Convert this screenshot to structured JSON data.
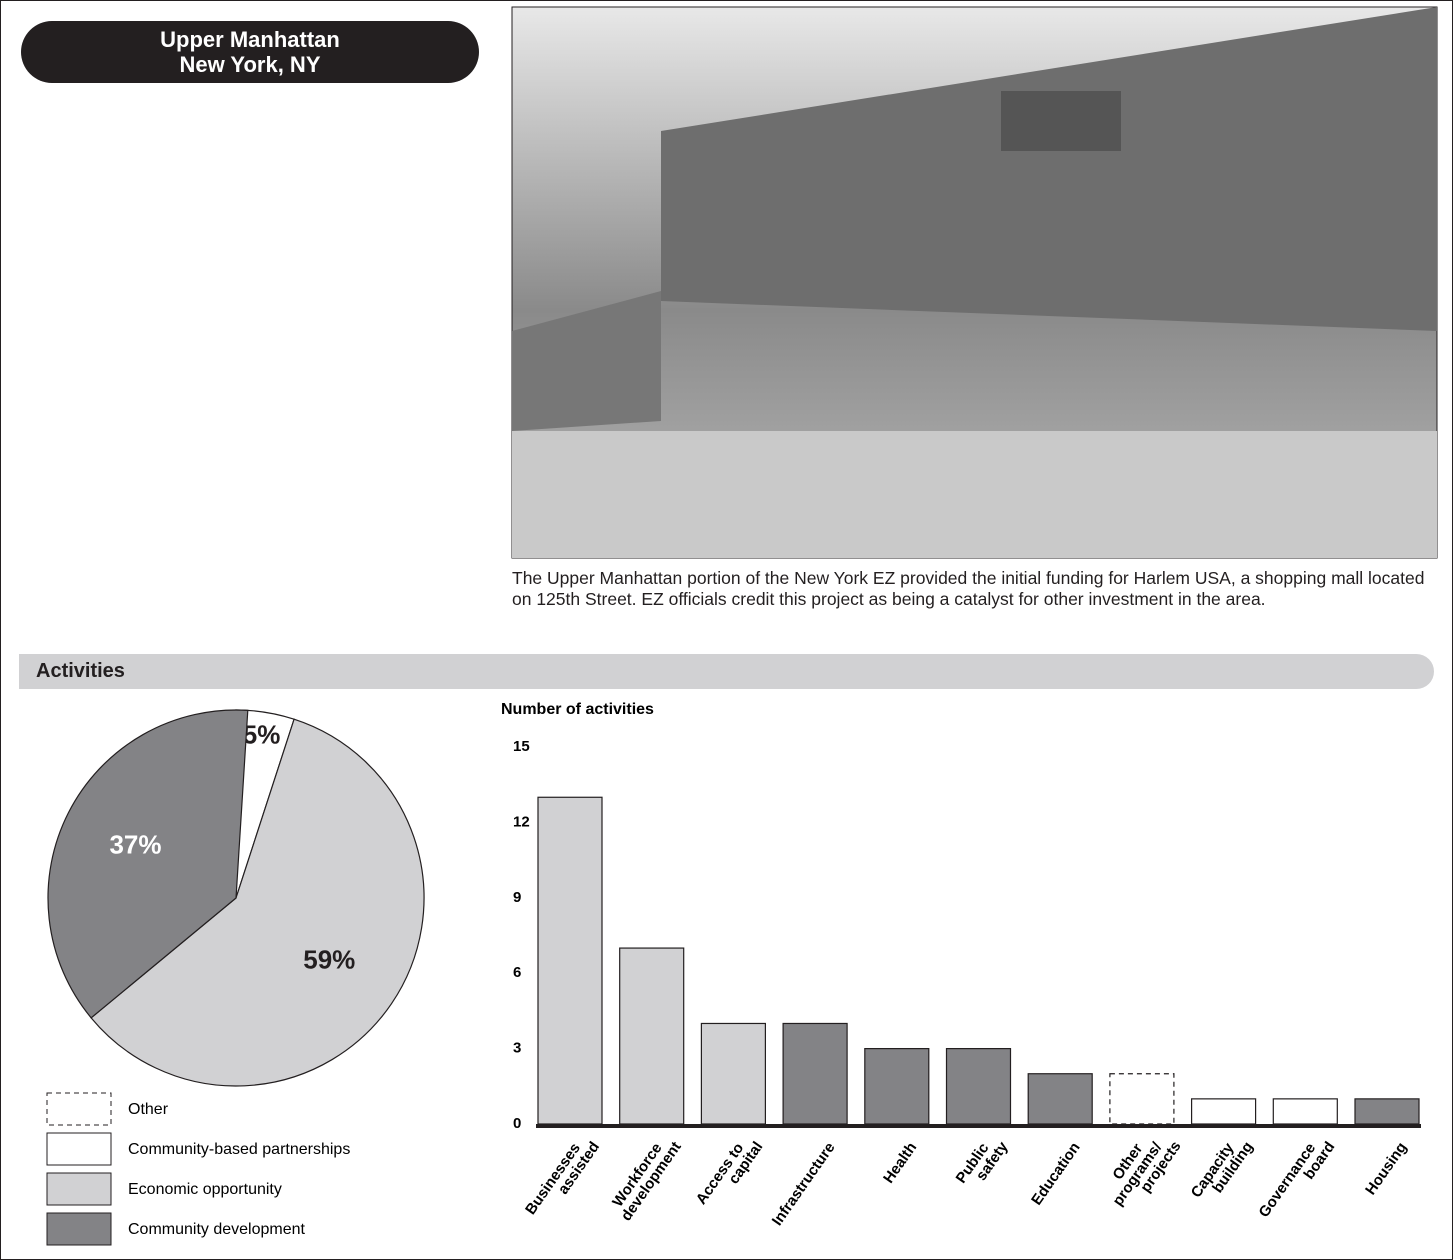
{
  "header": {
    "title": "Upper Manhattan",
    "location": "New York, NY"
  },
  "photo": {
    "caption": "The Upper Manhattan portion of the New York EZ provided the initial funding for Harlem USA, a shopping mall located on 125th Street. EZ officials credit this project as being a catalyst for other investment in the area."
  },
  "section": {
    "title": "Activities"
  },
  "chart_data": [
    {
      "type": "pie",
      "categories": [
        "Other",
        "Community-based partnerships",
        "Economic opportunity",
        "Community development"
      ],
      "values": [
        null,
        5,
        59,
        37
      ],
      "value_labels": [
        null,
        "5%",
        "59%",
        "37%"
      ],
      "colors": [
        "#ffffff",
        "#ffffff",
        "#d1d1d3",
        "#838386"
      ],
      "styles": [
        "dashed",
        "solid",
        "solid",
        "solid"
      ],
      "label_colors": [
        null,
        "#231f20",
        "#231f20",
        "#ffffff"
      ]
    },
    {
      "type": "bar",
      "y_label": "Number of activities",
      "categories": [
        [
          "Businesses",
          "assisted"
        ],
        [
          "Workforce",
          "development"
        ],
        [
          "Access to",
          "capital"
        ],
        [
          "Infrastructure"
        ],
        [
          "Health"
        ],
        [
          "Public",
          "safety"
        ],
        [
          "Education"
        ],
        [
          "Other",
          "programs/",
          "projects"
        ],
        [
          "Capacity",
          "building"
        ],
        [
          "Governance",
          "board"
        ],
        [
          "Housing"
        ]
      ],
      "values": [
        13,
        7,
        4,
        4,
        3,
        3,
        2,
        2,
        1,
        1,
        1
      ],
      "colors": [
        "#d1d1d3",
        "#d1d1d3",
        "#d1d1d3",
        "#838386",
        "#838386",
        "#838386",
        "#838386",
        "#ffffff",
        "#ffffff",
        "#ffffff",
        "#838386"
      ],
      "styles": [
        "solid",
        "solid",
        "solid",
        "solid",
        "solid",
        "solid",
        "solid",
        "dashed",
        "solid",
        "solid",
        "solid"
      ],
      "ylim": [
        0,
        15
      ],
      "yticks": [
        0,
        3,
        6,
        9,
        12,
        15
      ],
      "grid": false
    }
  ]
}
